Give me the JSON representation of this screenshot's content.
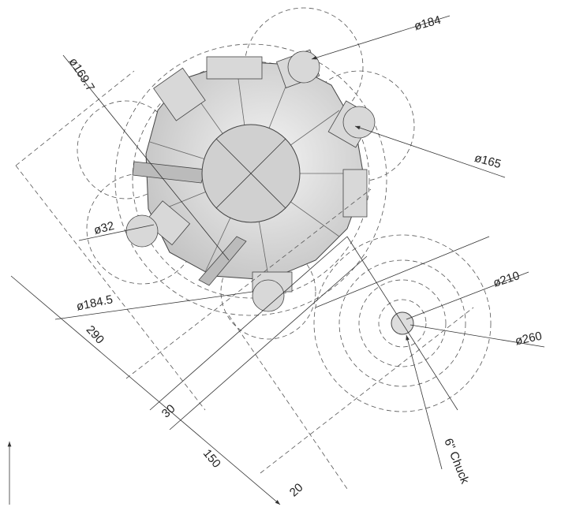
{
  "annotations": [
    "ø184",
    "ø169.7",
    "ø165",
    "ø32",
    "ø184.5",
    "ø210",
    "ø260",
    "290",
    "30",
    "150",
    "20",
    "6\" Chuck"
  ]
}
